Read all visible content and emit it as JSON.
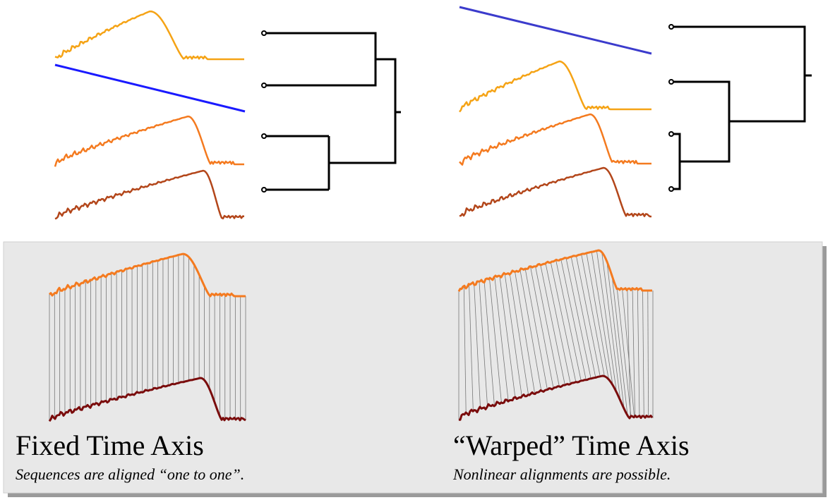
{
  "panels": [
    {
      "title": "Fixed Time Axis",
      "caption": "Sequences are aligned “one to one”."
    },
    {
      "title": "“Warped” Time Axis",
      "caption": "Nonlinear alignments are possible."
    }
  ]
}
